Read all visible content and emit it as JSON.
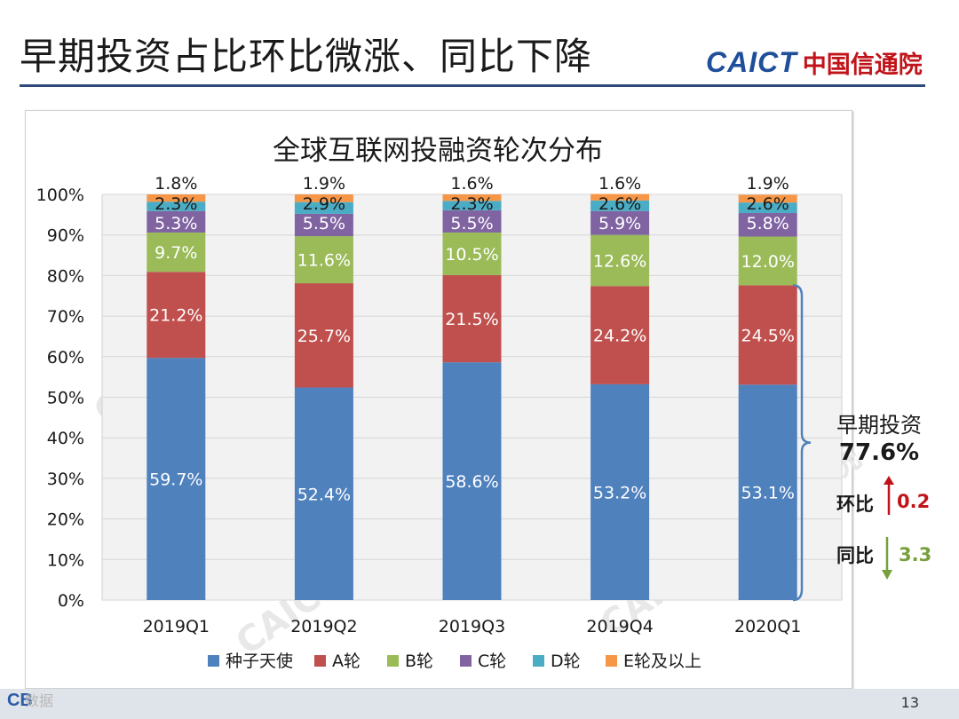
{
  "slide": {
    "title": "早期投资占比环比微涨、同比下降",
    "page_number": "13"
  },
  "logo": {
    "en": "CAICT",
    "cn": "中国信通院"
  },
  "footer": {
    "logo_text": "CB",
    "wm_text": "数据"
  },
  "watermark": "CAICT 中国信通院",
  "chart_data": {
    "type": "bar",
    "stacked": true,
    "title": "全球互联网投融资轮次分布",
    "categories": [
      "2019Q1",
      "2019Q2",
      "2019Q3",
      "2019Q4",
      "2020Q1"
    ],
    "y_ticks": [
      "0%",
      "10%",
      "20%",
      "30%",
      "40%",
      "50%",
      "60%",
      "70%",
      "80%",
      "90%",
      "100%"
    ],
    "ylim": [
      0,
      100
    ],
    "grid": true,
    "legend_position": "bottom",
    "series": [
      {
        "name": "种子天使",
        "color": "#4f81bd",
        "values": [
          59.7,
          52.4,
          58.6,
          53.2,
          53.1
        ],
        "labels": [
          "59.7%",
          "52.4%",
          "58.6%",
          "53.2%",
          "53.1%"
        ],
        "label_color": "#ffffff"
      },
      {
        "name": "A轮",
        "color": "#c0504d",
        "values": [
          21.2,
          25.7,
          21.5,
          24.2,
          24.5
        ],
        "labels": [
          "21.2%",
          "25.7%",
          "21.5%",
          "24.2%",
          "24.5%"
        ],
        "label_color": "#ffffff"
      },
      {
        "name": "B轮",
        "color": "#9bbb59",
        "values": [
          9.7,
          11.6,
          10.5,
          12.6,
          12.0
        ],
        "labels": [
          "9.7%",
          "11.6%",
          "10.5%",
          "12.6%",
          "12.0%"
        ],
        "label_color": "#ffffff"
      },
      {
        "name": "C轮",
        "color": "#8064a2",
        "values": [
          5.3,
          5.5,
          5.5,
          5.9,
          5.8
        ],
        "labels": [
          "5.3%",
          "5.5%",
          "5.5%",
          "5.9%",
          "5.8%"
        ],
        "label_color": "#ffffff"
      },
      {
        "name": "D轮",
        "color": "#4bacc6",
        "values": [
          2.3,
          2.9,
          2.3,
          2.6,
          2.6
        ],
        "labels": [
          "2.3%",
          "2.9%",
          "2.3%",
          "2.6%",
          "2.6%"
        ],
        "label_color": "#1a1a1a"
      },
      {
        "name": "E轮及以上",
        "color": "#f79646",
        "values": [
          1.8,
          1.9,
          1.6,
          1.6,
          1.9
        ],
        "labels": [
          "1.8%",
          "1.9%",
          "1.6%",
          "1.6%",
          "1.9%"
        ],
        "label_color": "#1a1a1a"
      }
    ],
    "annotation": {
      "label": "早期投资",
      "value": "77.6%",
      "qoq_label": "环比",
      "qoq_value": "0.2",
      "qoq_direction": "up",
      "qoq_color": "#c0141a",
      "yoy_label": "同比",
      "yoy_value": "3.3",
      "yoy_direction": "down",
      "yoy_color": "#77a03c"
    }
  }
}
